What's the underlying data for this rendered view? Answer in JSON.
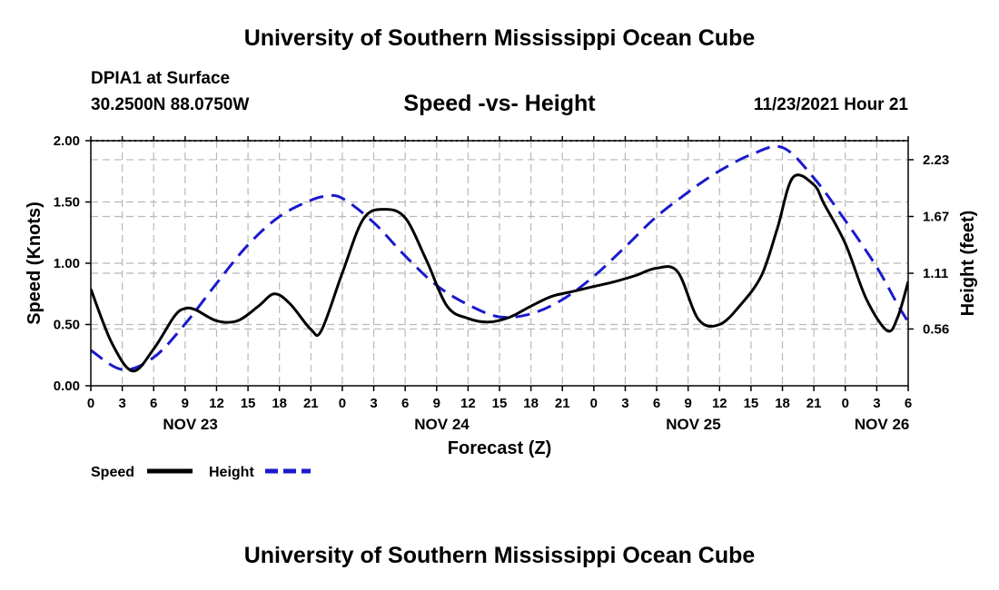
{
  "header": {
    "title": "University of Southern Mississippi Ocean Cube",
    "station": "DPIA1 at Surface",
    "coordinates": "30.2500N  88.0750W",
    "subtitle": "Speed -vs- Height",
    "datetime": "11/23/2021 Hour 21"
  },
  "footer": {
    "title": "University of Southern Mississippi Ocean Cube"
  },
  "colors": {
    "speed": "#000000",
    "height": "#1a1acc",
    "grid": "#b8b8b8"
  },
  "chart_data": {
    "type": "line",
    "title": "Speed -vs- Height",
    "xlabel": "Forecast (Z)",
    "ylabel": "Speed (Knots)",
    "y2label": "Height (feet)",
    "xlim": [
      0,
      78
    ],
    "ylim": [
      0,
      2.0
    ],
    "y2lim": [
      0,
      2.4176
    ],
    "grid": true,
    "x_ticks": [
      0,
      3,
      6,
      9,
      12,
      15,
      18,
      21,
      24,
      27,
      30,
      33,
      36,
      39,
      42,
      45,
      48,
      51,
      54,
      57,
      60,
      63,
      66,
      69,
      72,
      75,
      78
    ],
    "x_tick_labels": [
      "0",
      "3",
      "6",
      "9",
      "12",
      "15",
      "18",
      "21",
      "0",
      "3",
      "6",
      "9",
      "12",
      "15",
      "18",
      "21",
      "0",
      "3",
      "6",
      "9",
      "12",
      "15",
      "18",
      "21",
      "0",
      "3",
      "6"
    ],
    "day_labels": [
      {
        "label": "NOV 23",
        "x": 9.5
      },
      {
        "label": "NOV 24",
        "x": 33.5
      },
      {
        "label": "NOV 25",
        "x": 57.5
      },
      {
        "label": "NOV 26",
        "x": 75.5
      }
    ],
    "y_ticks": [
      0,
      0.5,
      1.0,
      1.5,
      2.0
    ],
    "y_tick_labels": [
      "0.00",
      "0.50",
      "1.00",
      "1.50",
      "2.00"
    ],
    "y2_ticks": [
      0.56,
      1.11,
      1.67,
      2.23
    ],
    "y2_tick_labels": [
      "0.56",
      "1.11",
      "1.67",
      "2.23"
    ],
    "legend": {
      "position": "bottom-left",
      "entries": [
        {
          "name": "Speed",
          "style": "solid"
        },
        {
          "name": "Height",
          "style": "dashed"
        }
      ]
    },
    "series": [
      {
        "name": "Speed",
        "axis": "left",
        "x": [
          0,
          2,
          4,
          6,
          8,
          9,
          10,
          12,
          14,
          16,
          17.5,
          19,
          21,
          22,
          24,
          26,
          28,
          30,
          32,
          34,
          36,
          38,
          40,
          42,
          44,
          46,
          48,
          50,
          52,
          54,
          56,
          58,
          60,
          62,
          64,
          65.5,
          67,
          69,
          70,
          72,
          74,
          76,
          77,
          78
        ],
        "y": [
          0.79,
          0.35,
          0.12,
          0.3,
          0.57,
          0.63,
          0.62,
          0.53,
          0.53,
          0.65,
          0.75,
          0.67,
          0.46,
          0.45,
          0.92,
          1.36,
          1.44,
          1.37,
          1.03,
          0.65,
          0.55,
          0.52,
          0.56,
          0.65,
          0.73,
          0.77,
          0.81,
          0.85,
          0.9,
          0.96,
          0.93,
          0.54,
          0.5,
          0.66,
          0.9,
          1.28,
          1.7,
          1.64,
          1.48,
          1.16,
          0.71,
          0.45,
          0.56,
          0.85
        ]
      },
      {
        "name": "Height",
        "axis": "right",
        "x": [
          0,
          3,
          6,
          9,
          12,
          15,
          18,
          21,
          22.5,
          24,
          27,
          30,
          33,
          36,
          39,
          42,
          45,
          48,
          51,
          54,
          57,
          57.5,
          60,
          63,
          66,
          69,
          72,
          75,
          77,
          78
        ],
        "y": [
          0.35,
          0.16,
          0.28,
          0.61,
          1.01,
          1.39,
          1.67,
          1.83,
          1.87,
          1.85,
          1.61,
          1.28,
          0.99,
          0.8,
          0.68,
          0.71,
          0.85,
          1.08,
          1.37,
          1.67,
          1.91,
          1.95,
          2.12,
          2.28,
          2.35,
          2.05,
          1.63,
          1.17,
          0.8,
          0.63
        ]
      }
    ]
  }
}
